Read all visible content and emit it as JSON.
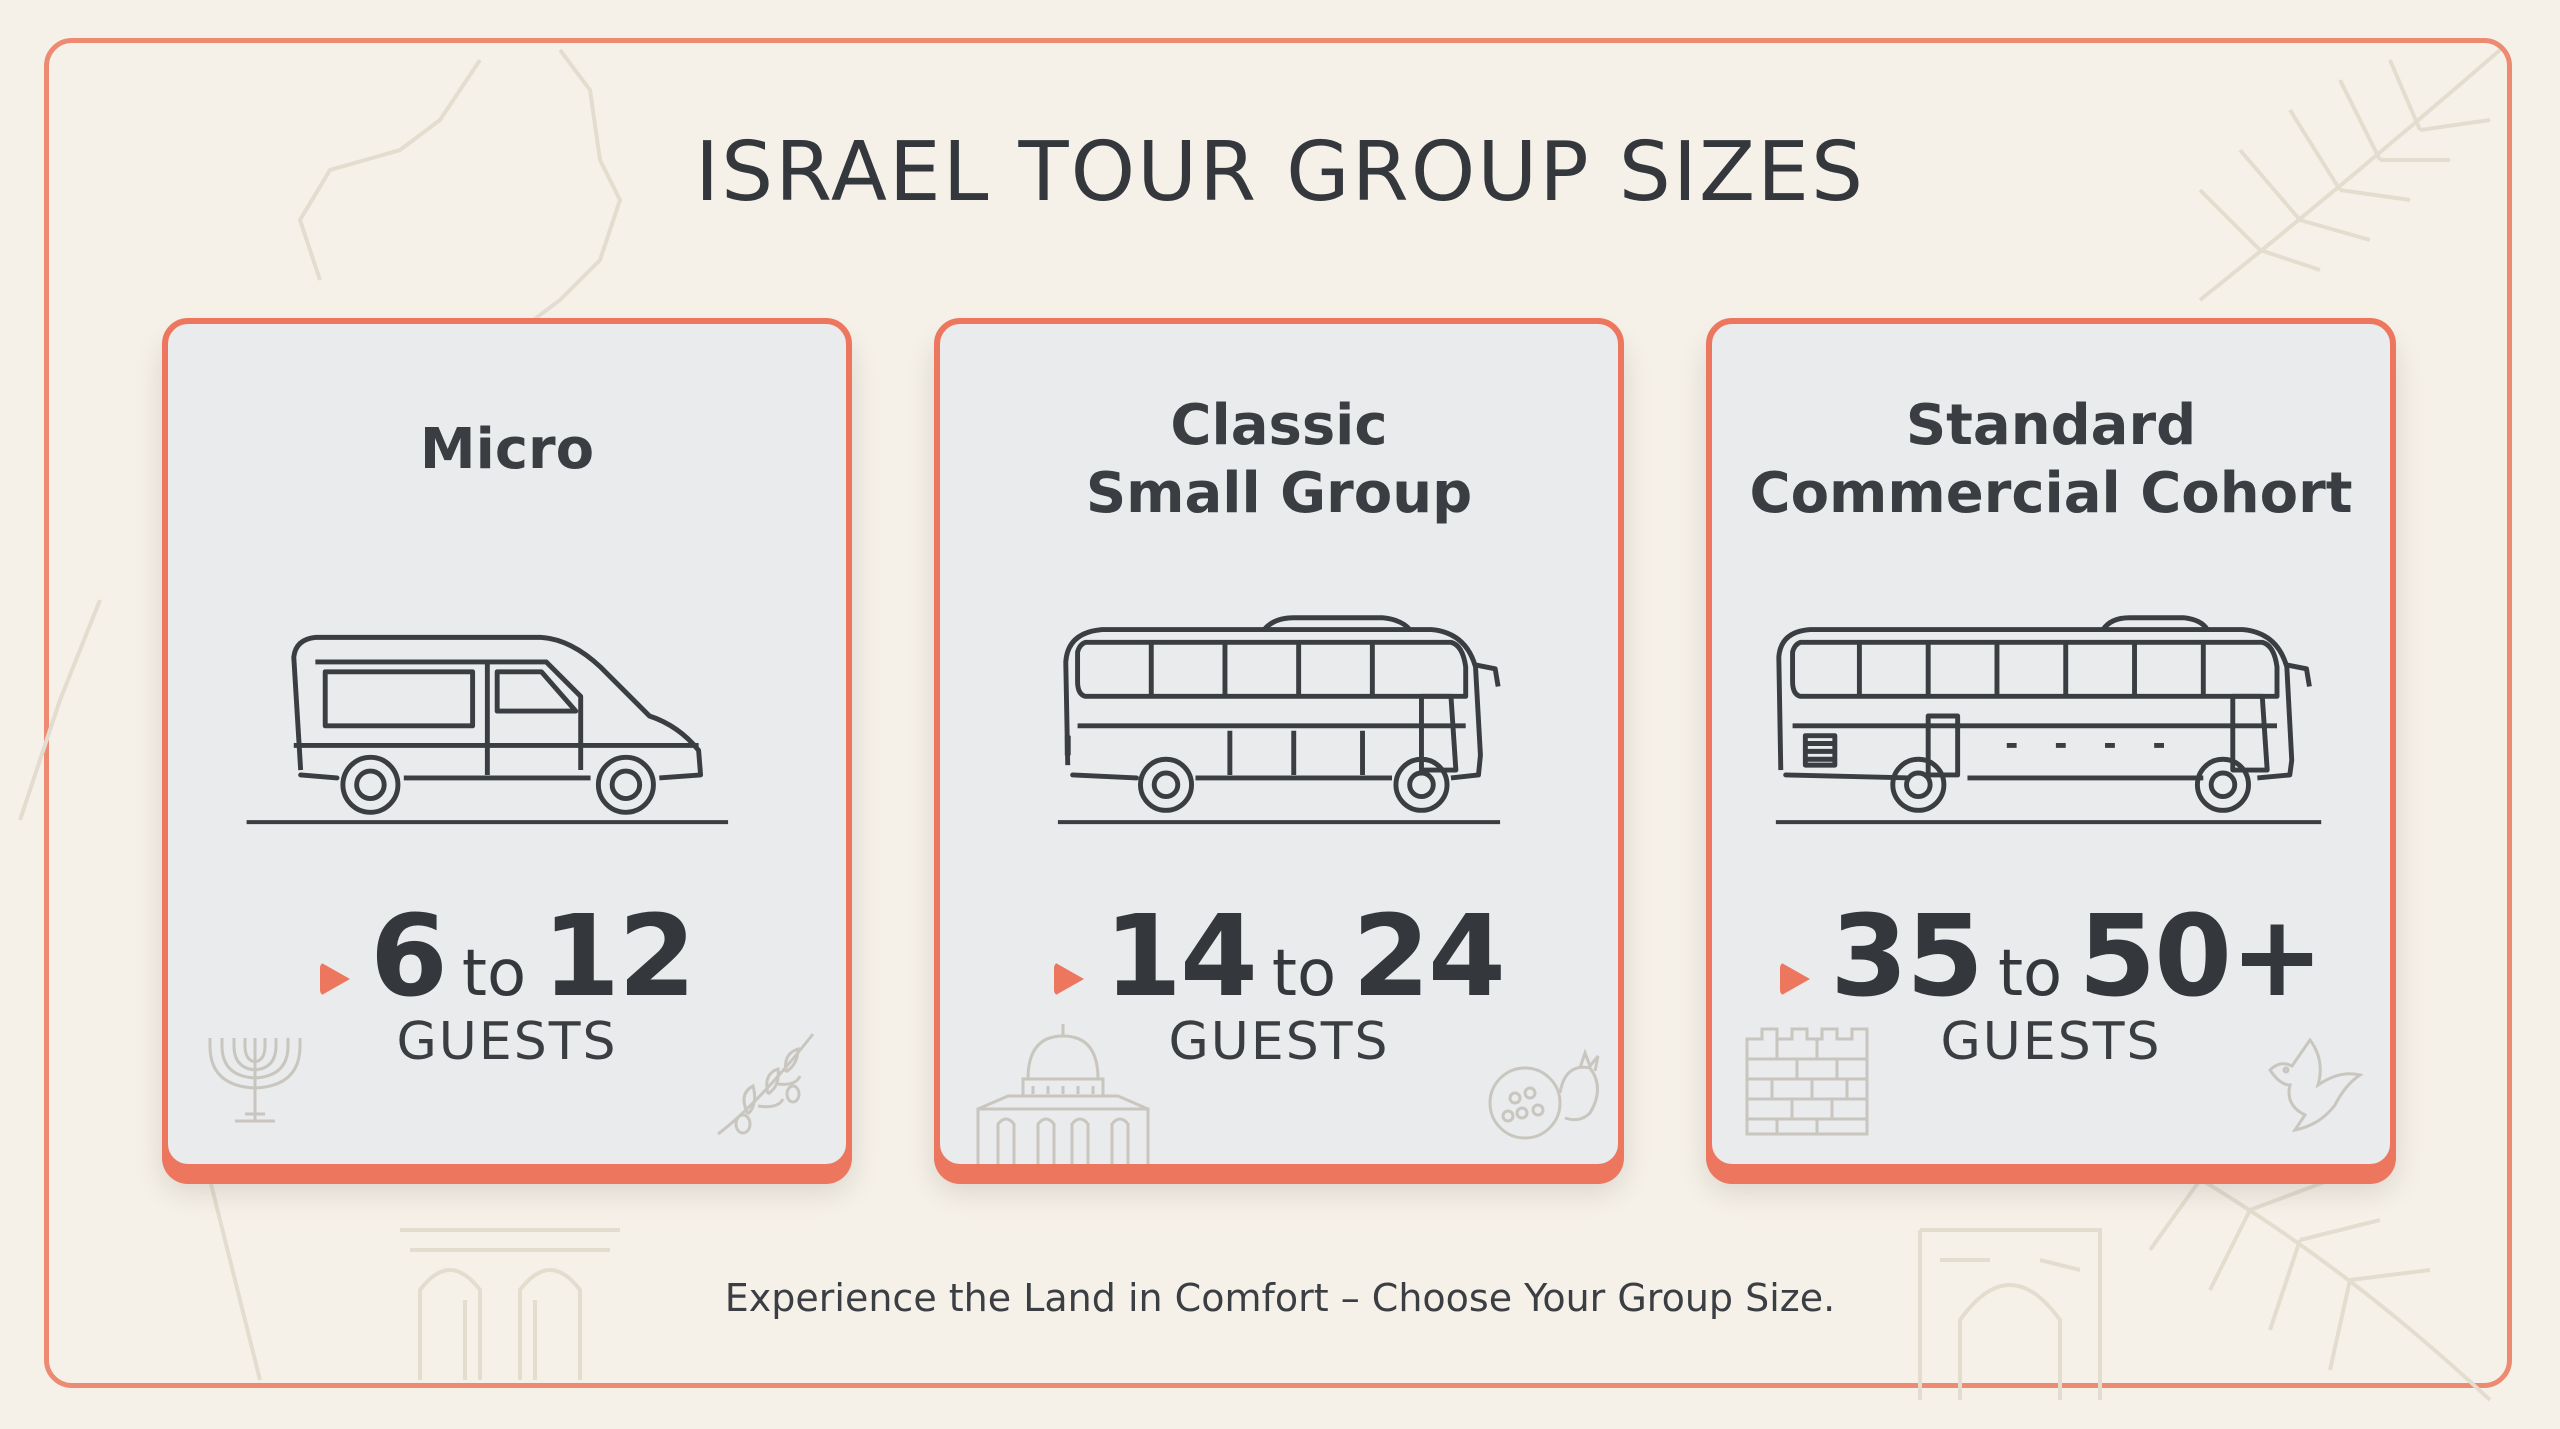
{
  "title": "ISRAEL TOUR GROUP SIZES",
  "cards": [
    {
      "title_lines": [
        "Micro"
      ],
      "min": "6",
      "to": "to",
      "max": "12",
      "unit": "GUESTS",
      "vehicle": "van-icon",
      "decor": [
        "menorah-icon",
        "olive-branch-icon"
      ]
    },
    {
      "title_lines": [
        "Classic",
        "Small Group"
      ],
      "min": "14",
      "to": "to",
      "max": "24",
      "unit": "GUESTS",
      "vehicle": "minibus-icon",
      "decor": [
        "dome-of-the-rock-icon",
        "pomegranate-icon"
      ]
    },
    {
      "title_lines": [
        "Standard",
        "Commercial Cohort"
      ],
      "min": "35",
      "to": "to",
      "max": "50+",
      "unit": "GUESTS",
      "vehicle": "coach-bus-icon",
      "decor": [
        "western-wall-icon",
        "dove-icon"
      ]
    }
  ],
  "tagline": "Experience the Land in Comfort – Choose Your Group Size.",
  "colors": {
    "accent": "#ec775e",
    "card_bg": "#e9ebec",
    "page_bg": "#f6f1e8",
    "text": "#34383d"
  }
}
